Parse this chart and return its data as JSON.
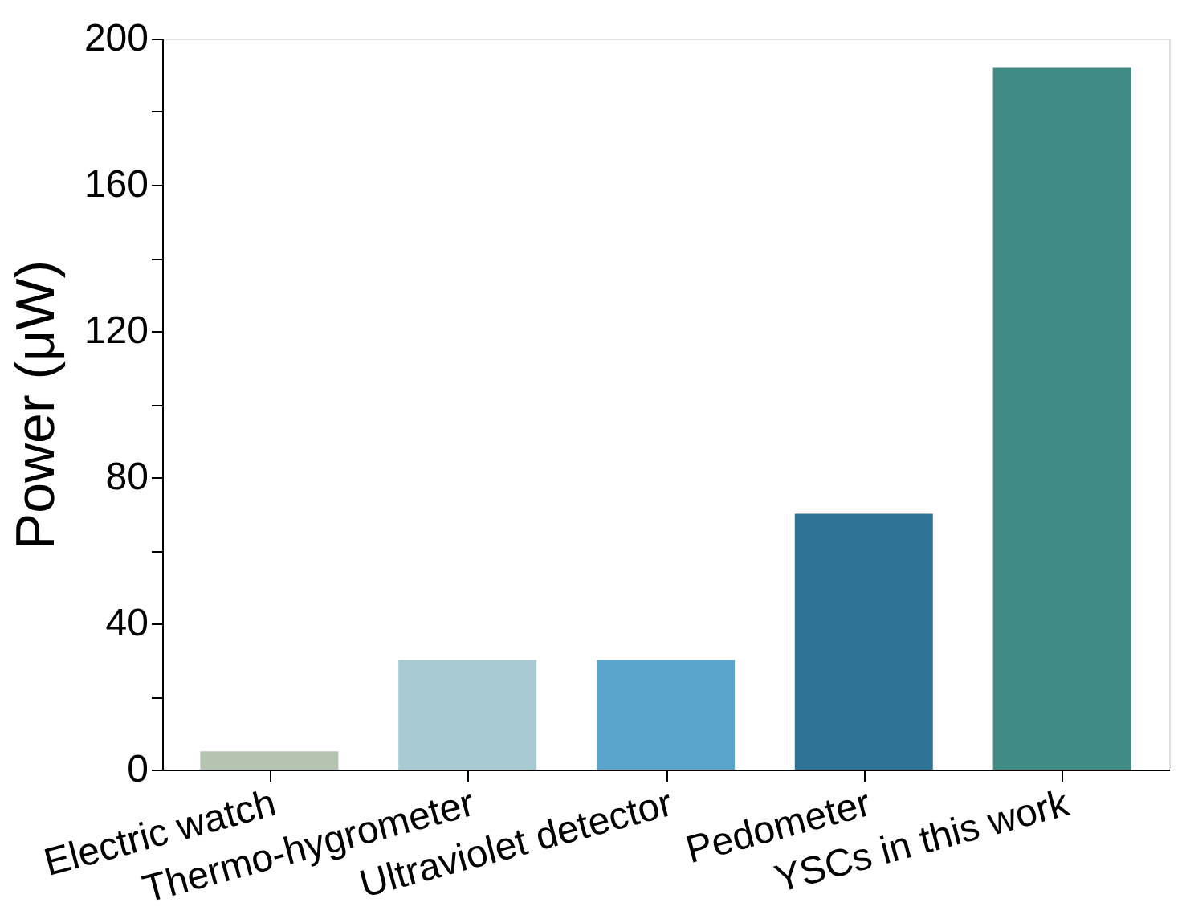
{
  "chart_data": {
    "type": "bar",
    "ylabel": "Power (μW)",
    "categories": [
      "Electric watch",
      "Thermo-hygrometer",
      "Ultraviolet detector",
      "Pedometer",
      "YSCs in this work"
    ],
    "values": [
      5,
      30,
      30,
      70,
      192
    ],
    "colors": [
      "#b5c4b1",
      "#a8cad3",
      "#5aa5cb",
      "#2f7496",
      "#3f8b84"
    ],
    "ylim": [
      0,
      200
    ],
    "yticks": [
      0,
      {
        "value": 20,
        "label": null
      },
      40,
      {
        "value": 60,
        "label": null
      },
      80,
      {
        "value": 100,
        "label": null
      },
      120,
      {
        "value": 140,
        "label": null
      },
      160,
      {
        "value": 180,
        "label": null
      },
      200
    ]
  }
}
